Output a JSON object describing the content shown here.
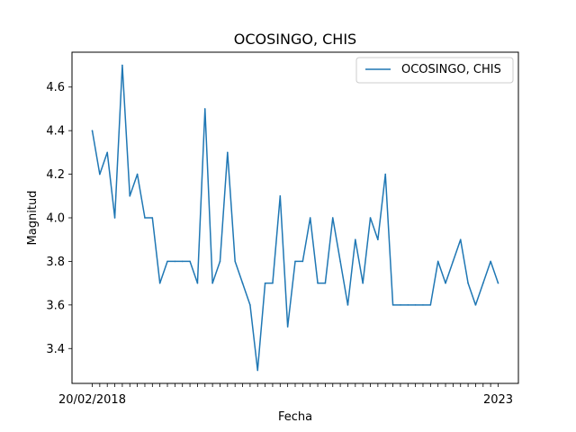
{
  "chart_data": {
    "type": "line",
    "title": "OCOSINGO, CHIS",
    "xlabel": "Fecha",
    "ylabel": "Magnitud",
    "legend": {
      "position": "top-right",
      "entries": [
        "OCOSINGO, CHIS"
      ]
    },
    "grid": false,
    "ylim": [
      3.24,
      4.76
    ],
    "yticks": [
      3.4,
      3.6,
      3.8,
      4.0,
      4.2,
      4.4,
      4.6
    ],
    "first_x_label": "20/02/2018",
    "last_x_label": "2023",
    "series": [
      {
        "name": "OCOSINGO, CHIS",
        "color": "#1f77b4",
        "values": [
          4.4,
          4.2,
          4.3,
          4.0,
          4.7,
          4.1,
          4.2,
          4.0,
          4.0,
          3.7,
          3.8,
          3.8,
          3.8,
          3.8,
          3.7,
          4.5,
          3.7,
          3.8,
          4.3,
          3.8,
          3.7,
          3.6,
          3.3,
          3.7,
          3.7,
          4.1,
          3.5,
          3.8,
          3.8,
          4.0,
          3.7,
          3.7,
          4.0,
          3.8,
          3.6,
          3.9,
          3.7,
          4.0,
          3.9,
          4.2,
          3.6,
          3.6,
          3.6,
          3.6,
          3.6,
          3.6,
          3.8,
          3.7,
          3.8,
          3.9,
          3.7,
          3.6,
          3.7,
          3.8,
          3.7
        ]
      }
    ]
  }
}
